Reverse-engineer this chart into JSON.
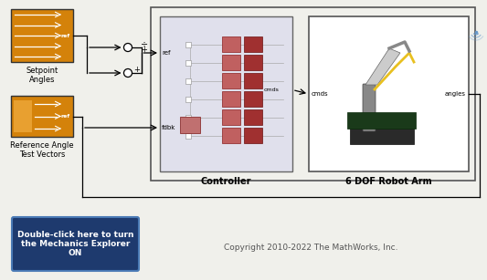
{
  "bg_color": "#f0f0eb",
  "fig_width": 5.33,
  "fig_height": 3.07,
  "dpi": 100,
  "orange_color": "#D4820A",
  "block_border": "#333333",
  "red_block_color": "#C06060",
  "red_block_dark": "#A03030",
  "controller_bg": "#E8E8F0",
  "controller_bg2": "#D8D8E8",
  "robot_bg": "#FFFFFF",
  "blue_button_color": "#1E3A6E",
  "blue_button_border": "#4A7AB5",
  "copyright_text": "Copyright 2010-2022 The MathWorks, Inc.",
  "button_text": "Double-click here to turn\nthe Mechanics Explorer\nON",
  "label_setpoint": "Setpoint\nAngles",
  "label_reference": "Reference Angle\nTest Vectors",
  "label_controller": "Controller",
  "label_robot": "6 DOF Robot Arm"
}
